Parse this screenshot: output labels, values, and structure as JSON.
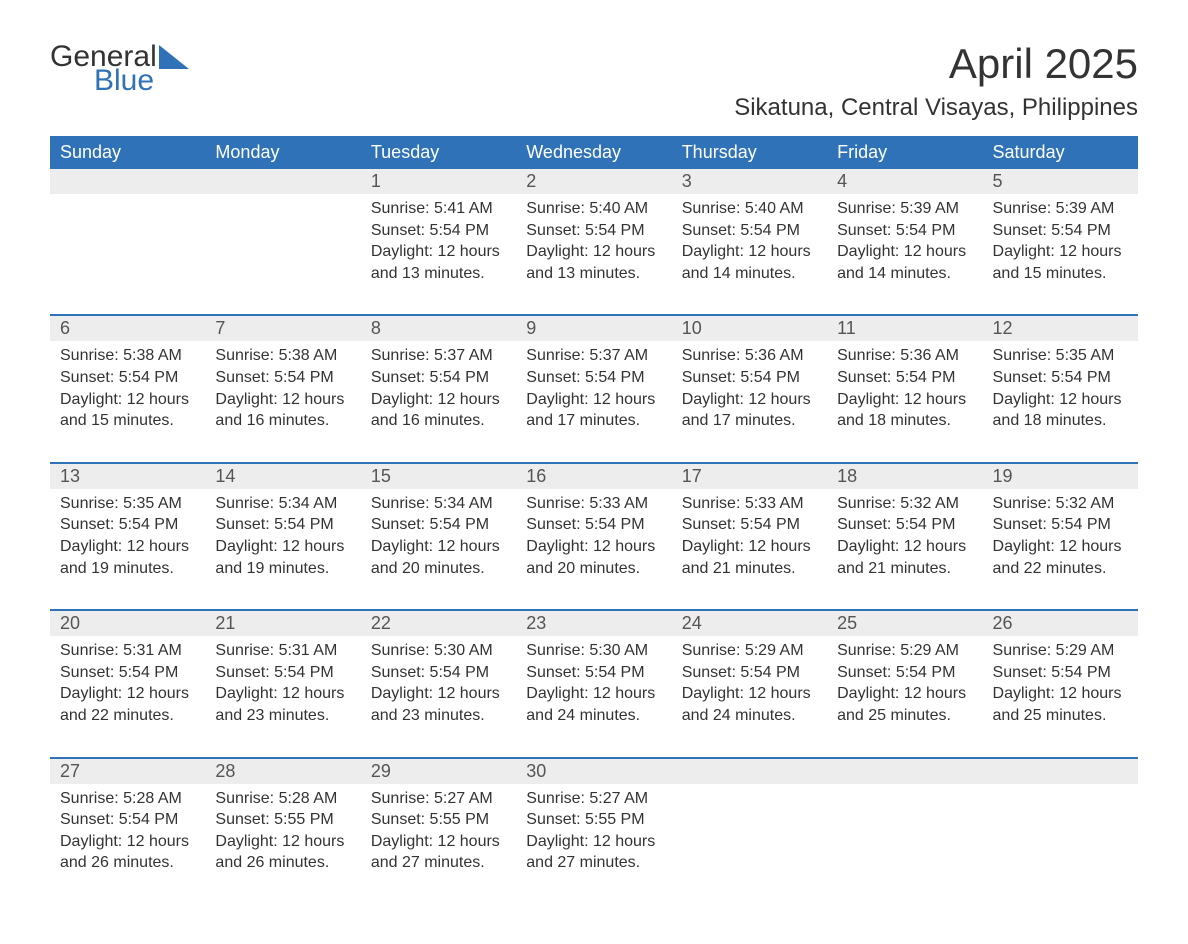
{
  "brand": {
    "main": "General",
    "accent": "Blue"
  },
  "title": "April 2025",
  "subtitle": "Sikatuna, Central Visayas, Philippines",
  "colors": {
    "header_bg": "#2f72b8",
    "header_text": "#ffffff",
    "daynum_bg": "#ededed",
    "body_text": "#333333",
    "rule": "#2f72b8"
  },
  "layout": {
    "columns": 7,
    "type": "calendar",
    "start_day": "Sunday"
  },
  "day_headers": [
    "Sunday",
    "Monday",
    "Tuesday",
    "Wednesday",
    "Thursday",
    "Friday",
    "Saturday"
  ],
  "weeks": [
    [
      {
        "n": "",
        "sunrise": "",
        "sunset": "",
        "daylight": ""
      },
      {
        "n": "",
        "sunrise": "",
        "sunset": "",
        "daylight": ""
      },
      {
        "n": "1",
        "sunrise": "Sunrise: 5:41 AM",
        "sunset": "Sunset: 5:54 PM",
        "daylight": "Daylight: 12 hours and 13 minutes."
      },
      {
        "n": "2",
        "sunrise": "Sunrise: 5:40 AM",
        "sunset": "Sunset: 5:54 PM",
        "daylight": "Daylight: 12 hours and 13 minutes."
      },
      {
        "n": "3",
        "sunrise": "Sunrise: 5:40 AM",
        "sunset": "Sunset: 5:54 PM",
        "daylight": "Daylight: 12 hours and 14 minutes."
      },
      {
        "n": "4",
        "sunrise": "Sunrise: 5:39 AM",
        "sunset": "Sunset: 5:54 PM",
        "daylight": "Daylight: 12 hours and 14 minutes."
      },
      {
        "n": "5",
        "sunrise": "Sunrise: 5:39 AM",
        "sunset": "Sunset: 5:54 PM",
        "daylight": "Daylight: 12 hours and 15 minutes."
      }
    ],
    [
      {
        "n": "6",
        "sunrise": "Sunrise: 5:38 AM",
        "sunset": "Sunset: 5:54 PM",
        "daylight": "Daylight: 12 hours and 15 minutes."
      },
      {
        "n": "7",
        "sunrise": "Sunrise: 5:38 AM",
        "sunset": "Sunset: 5:54 PM",
        "daylight": "Daylight: 12 hours and 16 minutes."
      },
      {
        "n": "8",
        "sunrise": "Sunrise: 5:37 AM",
        "sunset": "Sunset: 5:54 PM",
        "daylight": "Daylight: 12 hours and 16 minutes."
      },
      {
        "n": "9",
        "sunrise": "Sunrise: 5:37 AM",
        "sunset": "Sunset: 5:54 PM",
        "daylight": "Daylight: 12 hours and 17 minutes."
      },
      {
        "n": "10",
        "sunrise": "Sunrise: 5:36 AM",
        "sunset": "Sunset: 5:54 PM",
        "daylight": "Daylight: 12 hours and 17 minutes."
      },
      {
        "n": "11",
        "sunrise": "Sunrise: 5:36 AM",
        "sunset": "Sunset: 5:54 PM",
        "daylight": "Daylight: 12 hours and 18 minutes."
      },
      {
        "n": "12",
        "sunrise": "Sunrise: 5:35 AM",
        "sunset": "Sunset: 5:54 PM",
        "daylight": "Daylight: 12 hours and 18 minutes."
      }
    ],
    [
      {
        "n": "13",
        "sunrise": "Sunrise: 5:35 AM",
        "sunset": "Sunset: 5:54 PM",
        "daylight": "Daylight: 12 hours and 19 minutes."
      },
      {
        "n": "14",
        "sunrise": "Sunrise: 5:34 AM",
        "sunset": "Sunset: 5:54 PM",
        "daylight": "Daylight: 12 hours and 19 minutes."
      },
      {
        "n": "15",
        "sunrise": "Sunrise: 5:34 AM",
        "sunset": "Sunset: 5:54 PM",
        "daylight": "Daylight: 12 hours and 20 minutes."
      },
      {
        "n": "16",
        "sunrise": "Sunrise: 5:33 AM",
        "sunset": "Sunset: 5:54 PM",
        "daylight": "Daylight: 12 hours and 20 minutes."
      },
      {
        "n": "17",
        "sunrise": "Sunrise: 5:33 AM",
        "sunset": "Sunset: 5:54 PM",
        "daylight": "Daylight: 12 hours and 21 minutes."
      },
      {
        "n": "18",
        "sunrise": "Sunrise: 5:32 AM",
        "sunset": "Sunset: 5:54 PM",
        "daylight": "Daylight: 12 hours and 21 minutes."
      },
      {
        "n": "19",
        "sunrise": "Sunrise: 5:32 AM",
        "sunset": "Sunset: 5:54 PM",
        "daylight": "Daylight: 12 hours and 22 minutes."
      }
    ],
    [
      {
        "n": "20",
        "sunrise": "Sunrise: 5:31 AM",
        "sunset": "Sunset: 5:54 PM",
        "daylight": "Daylight: 12 hours and 22 minutes."
      },
      {
        "n": "21",
        "sunrise": "Sunrise: 5:31 AM",
        "sunset": "Sunset: 5:54 PM",
        "daylight": "Daylight: 12 hours and 23 minutes."
      },
      {
        "n": "22",
        "sunrise": "Sunrise: 5:30 AM",
        "sunset": "Sunset: 5:54 PM",
        "daylight": "Daylight: 12 hours and 23 minutes."
      },
      {
        "n": "23",
        "sunrise": "Sunrise: 5:30 AM",
        "sunset": "Sunset: 5:54 PM",
        "daylight": "Daylight: 12 hours and 24 minutes."
      },
      {
        "n": "24",
        "sunrise": "Sunrise: 5:29 AM",
        "sunset": "Sunset: 5:54 PM",
        "daylight": "Daylight: 12 hours and 24 minutes."
      },
      {
        "n": "25",
        "sunrise": "Sunrise: 5:29 AM",
        "sunset": "Sunset: 5:54 PM",
        "daylight": "Daylight: 12 hours and 25 minutes."
      },
      {
        "n": "26",
        "sunrise": "Sunrise: 5:29 AM",
        "sunset": "Sunset: 5:54 PM",
        "daylight": "Daylight: 12 hours and 25 minutes."
      }
    ],
    [
      {
        "n": "27",
        "sunrise": "Sunrise: 5:28 AM",
        "sunset": "Sunset: 5:54 PM",
        "daylight": "Daylight: 12 hours and 26 minutes."
      },
      {
        "n": "28",
        "sunrise": "Sunrise: 5:28 AM",
        "sunset": "Sunset: 5:55 PM",
        "daylight": "Daylight: 12 hours and 26 minutes."
      },
      {
        "n": "29",
        "sunrise": "Sunrise: 5:27 AM",
        "sunset": "Sunset: 5:55 PM",
        "daylight": "Daylight: 12 hours and 27 minutes."
      },
      {
        "n": "30",
        "sunrise": "Sunrise: 5:27 AM",
        "sunset": "Sunset: 5:55 PM",
        "daylight": "Daylight: 12 hours and 27 minutes."
      },
      {
        "n": "",
        "sunrise": "",
        "sunset": "",
        "daylight": ""
      },
      {
        "n": "",
        "sunrise": "",
        "sunset": "",
        "daylight": ""
      },
      {
        "n": "",
        "sunrise": "",
        "sunset": "",
        "daylight": ""
      }
    ]
  ]
}
